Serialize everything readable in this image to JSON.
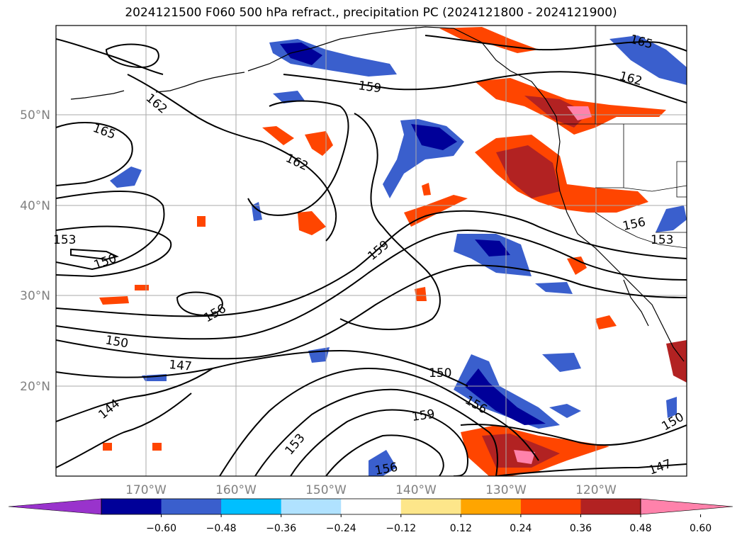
{
  "title": "2024121500 F060 500 hPa refract., precipitation PC (2024121800 - 2024121900)",
  "map": {
    "lon_labels": [
      "170°W",
      "160°W",
      "150°W",
      "140°W",
      "130°W",
      "120°W"
    ],
    "lat_labels": [
      "50°N",
      "40°N",
      "30°N",
      "20°N"
    ],
    "contour_labels": [
      "165",
      "162",
      "159",
      "165",
      "162",
      "162",
      "153",
      "150",
      "159",
      "156",
      "156",
      "153",
      "150",
      "147",
      "150",
      "144",
      "153",
      "159",
      "156",
      "156",
      "150",
      "147"
    ]
  },
  "colorbar": {
    "ticks": [
      "−0.60",
      "−0.48",
      "−0.36",
      "−0.24",
      "−0.12",
      "0.12",
      "0.24",
      "0.36",
      "0.48",
      "0.60"
    ],
    "colors": [
      "#9933cc",
      "#000099",
      "#3a5fcd",
      "#00bfff",
      "#b0e2ff",
      "#ffffff",
      "#fde68a",
      "#ffa500",
      "#ff4500",
      "#b22222",
      "#ff82ab"
    ]
  }
}
